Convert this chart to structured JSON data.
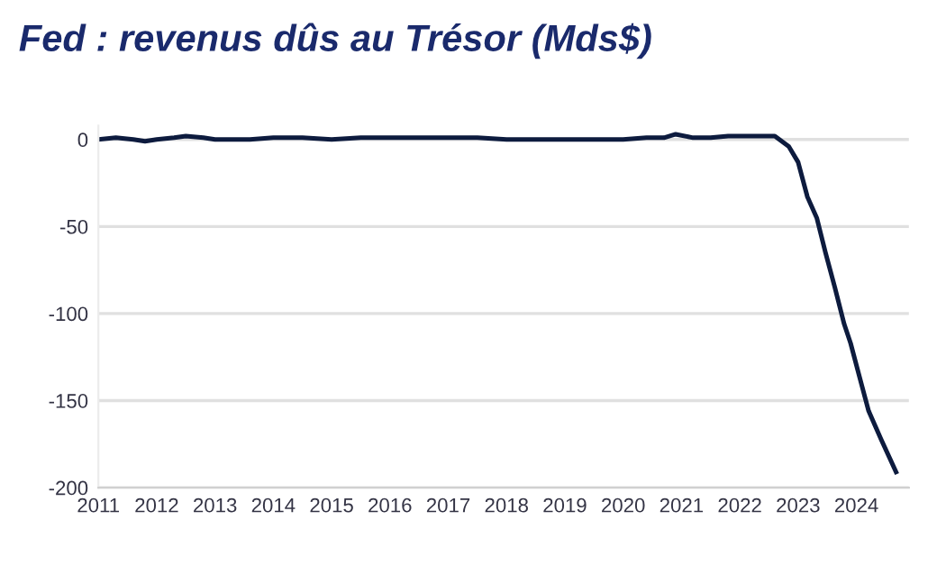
{
  "chart_data": {
    "type": "line",
    "title": "Fed : revenus dûs au Trésor (Mds$)",
    "x": [
      2011.0,
      2011.3,
      2011.6,
      2011.8,
      2012.0,
      2012.3,
      2012.5,
      2012.8,
      2013.0,
      2013.3,
      2013.6,
      2014.0,
      2014.5,
      2015.0,
      2015.5,
      2016.0,
      2016.5,
      2017.0,
      2017.5,
      2018.0,
      2018.5,
      2019.0,
      2019.5,
      2020.0,
      2020.4,
      2020.7,
      2020.9,
      2021.2,
      2021.5,
      2021.8,
      2022.0,
      2022.3,
      2022.6,
      2022.84,
      2023.0,
      2023.16,
      2023.32,
      2023.47,
      2023.63,
      2023.79,
      2023.9,
      2024.05,
      2024.21,
      2024.42,
      2024.68
    ],
    "series": [
      {
        "color": "#0d1b3e",
        "values": [
          0,
          1,
          0,
          -1,
          0,
          1,
          2,
          1,
          0,
          0,
          0,
          1,
          1,
          0,
          1,
          1,
          1,
          1,
          1,
          0,
          0,
          0,
          0,
          0,
          1,
          1,
          3,
          1,
          1,
          2,
          2,
          2,
          2,
          -4,
          -13,
          -33,
          -45,
          -65,
          -85,
          -106,
          -117,
          -136,
          -156,
          -172,
          -191
        ]
      }
    ],
    "xlim": [
      2011,
      2024.9
    ],
    "xticks": [
      2011,
      2012,
      2013,
      2014,
      2015,
      2016,
      2017,
      2018,
      2019,
      2020,
      2021,
      2022,
      2023,
      2024
    ],
    "ylim": [
      -200,
      8
    ],
    "yticks": [
      0,
      -50,
      -100,
      -150,
      -200
    ],
    "grid": "y",
    "legend": false,
    "marker": "none",
    "line_style": "solid"
  }
}
